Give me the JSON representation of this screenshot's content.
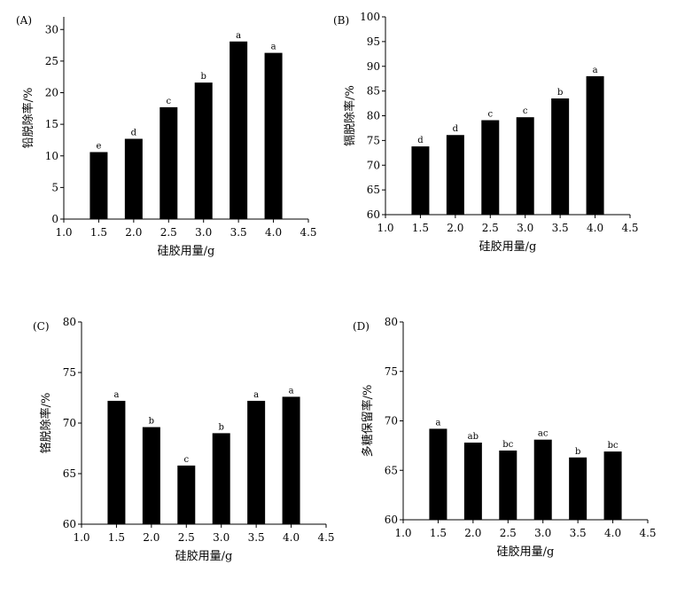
{
  "colors": {
    "bar": "#000000",
    "axis": "#000000",
    "background": "#ffffff"
  },
  "chart_data": [
    {
      "panel_label": "(A)",
      "type": "bar",
      "xlabel": "硅胶用量/g",
      "ylabel": "铅脱除率/%",
      "x_ticks": [
        "1.0",
        "1.5",
        "2.0",
        "2.5",
        "3.0",
        "3.5",
        "4.0",
        "4.5"
      ],
      "x_range": [
        1.0,
        4.5
      ],
      "categories": [
        "1.5",
        "2.0",
        "2.5",
        "3.0",
        "3.5",
        "4.0"
      ],
      "x_values": [
        1.5,
        2.0,
        2.5,
        3.0,
        3.5,
        4.0
      ],
      "values": [
        10.6,
        12.7,
        17.7,
        21.6,
        28.1,
        26.3
      ],
      "significance_labels": [
        "e",
        "d",
        "c",
        "b",
        "a",
        "a"
      ],
      "y_ticks": [
        "0",
        "5",
        "10",
        "15",
        "20",
        "25",
        "30"
      ],
      "ylim": [
        0,
        32
      ],
      "grid": false
    },
    {
      "panel_label": "(B)",
      "type": "bar",
      "xlabel": "硅胶用量/g",
      "ylabel": "镉脱除率/%",
      "x_ticks": [
        "1.0",
        "1.5",
        "2.0",
        "2.5",
        "3.0",
        "3.5",
        "4.0",
        "4.5"
      ],
      "x_range": [
        1.0,
        4.5
      ],
      "categories": [
        "1.5",
        "2.0",
        "2.5",
        "3.0",
        "3.5",
        "4.0"
      ],
      "x_values": [
        1.5,
        2.0,
        2.5,
        3.0,
        3.5,
        4.0
      ],
      "values": [
        73.8,
        76.1,
        79.1,
        79.7,
        83.5,
        88.0
      ],
      "significance_labels": [
        "d",
        "d",
        "c",
        "c",
        "b",
        "a"
      ],
      "y_ticks": [
        "60",
        "65",
        "70",
        "75",
        "80",
        "85",
        "90",
        "95",
        "100"
      ],
      "ylim": [
        60,
        100
      ],
      "grid": false
    },
    {
      "panel_label": "(C)",
      "type": "bar",
      "xlabel": "硅胶用量/g",
      "ylabel": "铬脱除率/%",
      "x_ticks": [
        "1.0",
        "1.5",
        "2.0",
        "2.5",
        "3.0",
        "3.5",
        "4.0",
        "4.5"
      ],
      "x_range": [
        1.0,
        4.5
      ],
      "categories": [
        "1.5",
        "2.0",
        "2.5",
        "3.0",
        "3.5",
        "4.0"
      ],
      "x_values": [
        1.5,
        2.0,
        2.5,
        3.0,
        3.5,
        4.0
      ],
      "values": [
        72.2,
        69.6,
        65.8,
        69.0,
        72.2,
        72.6
      ],
      "significance_labels": [
        "a",
        "b",
        "c",
        "b",
        "a",
        "a"
      ],
      "y_ticks": [
        "60",
        "65",
        "70",
        "75",
        "80"
      ],
      "ylim": [
        60,
        80
      ],
      "grid": false
    },
    {
      "panel_label": "(D)",
      "type": "bar",
      "xlabel": "硅胶用量/g",
      "ylabel": "多糖保留率/%",
      "x_ticks": [
        "1.0",
        "1.5",
        "2.0",
        "2.5",
        "3.0",
        "3.5",
        "4.0",
        "4.5"
      ],
      "x_range": [
        1.0,
        4.5
      ],
      "categories": [
        "1.5",
        "2.0",
        "2.5",
        "3.0",
        "3.5",
        "4.0"
      ],
      "x_values": [
        1.5,
        2.0,
        2.5,
        3.0,
        3.5,
        4.0
      ],
      "values": [
        69.2,
        67.8,
        67.0,
        68.1,
        66.3,
        66.9
      ],
      "significance_labels": [
        "a",
        "ab",
        "bc",
        "ac",
        "b",
        "bc"
      ],
      "y_ticks": [
        "60",
        "65",
        "70",
        "75",
        "80"
      ],
      "ylim": [
        60,
        80
      ],
      "grid": false
    }
  ]
}
